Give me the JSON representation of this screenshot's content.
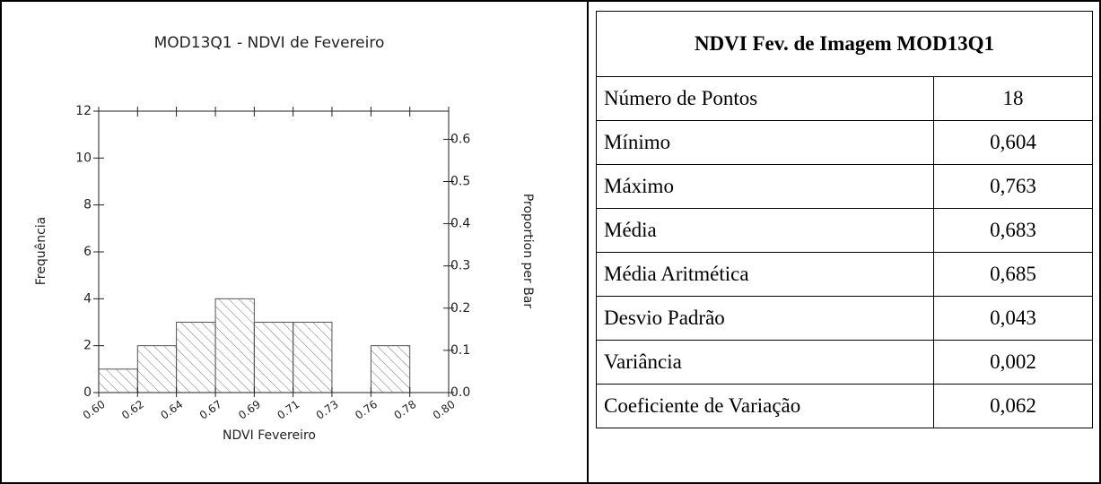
{
  "chart_data": {
    "type": "histogram",
    "title": "MOD13Q1 - NDVI de Fevereiro",
    "x_label": "NDVI Fevereiro",
    "y_label": "Frequência",
    "y2_label": "Proportion per Bar",
    "bins": [
      0.6,
      0.6222,
      0.6444,
      0.6667,
      0.6889,
      0.7111,
      0.7333,
      0.7556,
      0.7778,
      0.8
    ],
    "values": [
      1,
      2,
      3,
      4,
      3,
      3,
      0,
      2,
      0
    ],
    "color": "#555555",
    "xlim": [
      0.6,
      0.8
    ],
    "xticks": [
      {
        "value": 0.6,
        "label": "0.60"
      },
      {
        "value": 0.6222,
        "label": "0.62"
      },
      {
        "value": 0.6444,
        "label": "0.64"
      },
      {
        "value": 0.6667,
        "label": "0.67"
      },
      {
        "value": 0.6889,
        "label": "0.69"
      },
      {
        "value": 0.7111,
        "label": "0.71"
      },
      {
        "value": 0.7333,
        "label": "0.73"
      },
      {
        "value": 0.7556,
        "label": "0.76"
      },
      {
        "value": 0.7778,
        "label": "0.78"
      },
      {
        "value": 0.8,
        "label": "0.80"
      }
    ],
    "ylim": [
      0,
      12
    ],
    "yticks": [
      0,
      2,
      4,
      6,
      8,
      10,
      12
    ],
    "y2lim": [
      0,
      0.6667
    ],
    "y2ticks": [
      {
        "value": 0,
        "label": "0.0"
      },
      0.1,
      0.2,
      0.3,
      0.4,
      0.5,
      0.6
    ]
  },
  "table": {
    "title": "NDVI Fev. de Imagem MOD13Q1",
    "rows": [
      [
        "Número de Pontos",
        "18"
      ],
      [
        "Mínimo",
        "0,604"
      ],
      [
        "Máximo",
        "0,763"
      ],
      [
        "Média",
        "0,683"
      ],
      [
        "Média Aritmética",
        "0,685"
      ],
      [
        "Desvio Padrão",
        "0,043"
      ],
      [
        "Variância",
        "0,002"
      ],
      [
        "Coeficiente de Variação",
        "0,062"
      ]
    ]
  }
}
